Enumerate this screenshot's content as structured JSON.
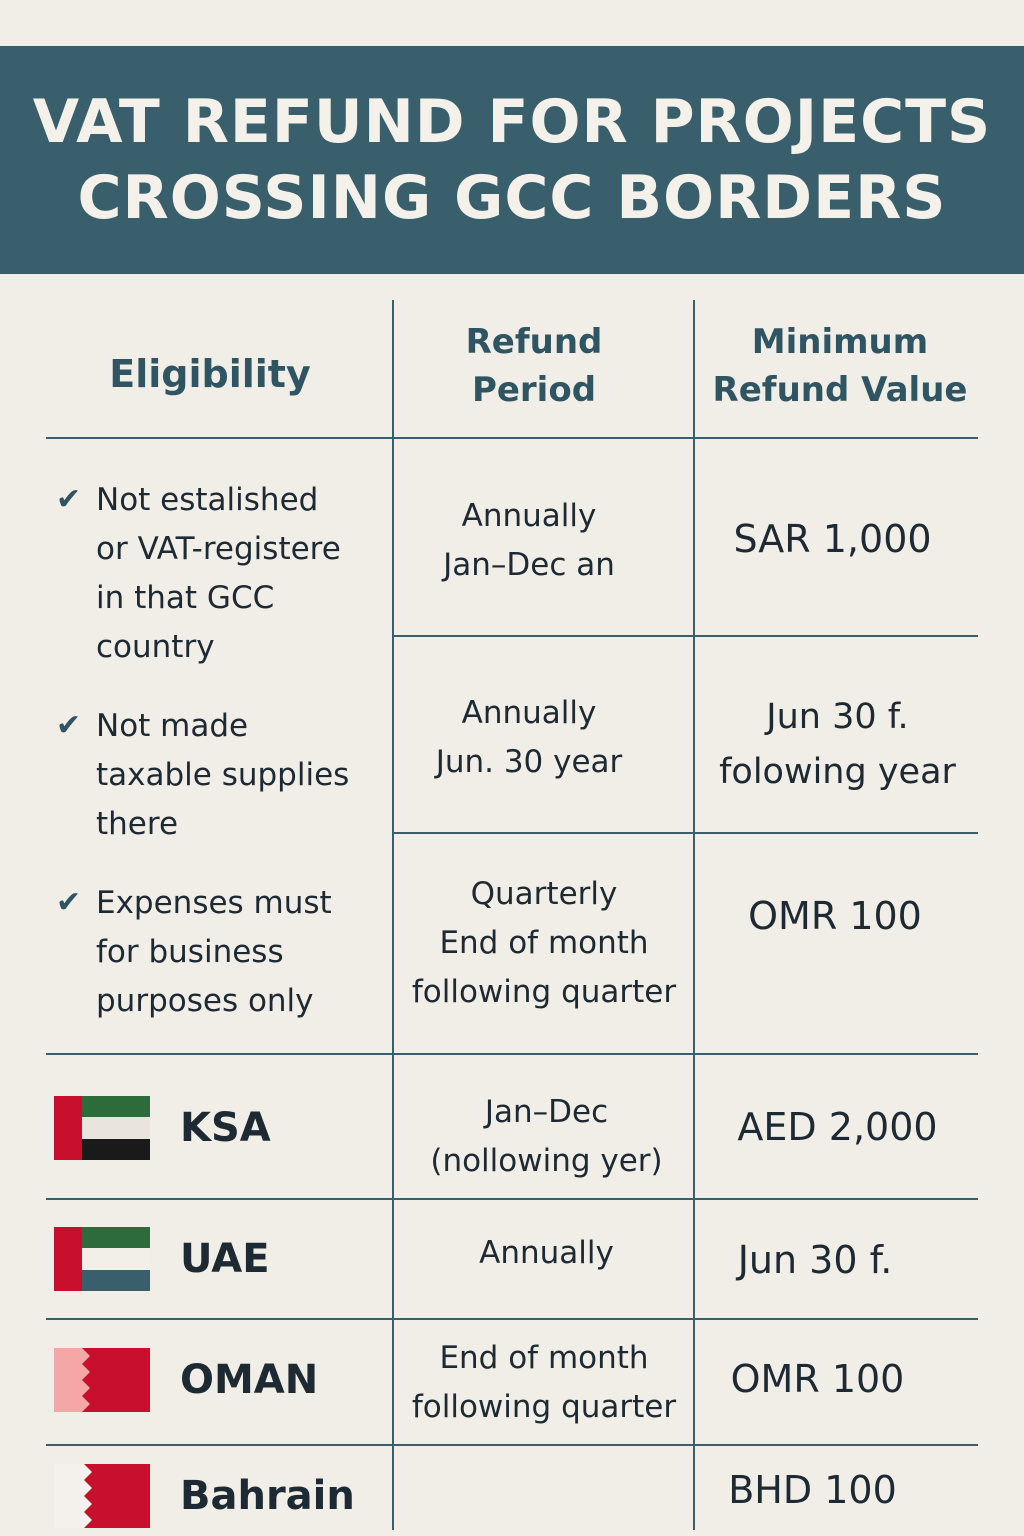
{
  "title": {
    "line1": "VAT REFUND FOR PROJECTS",
    "line2": "CROSSING GCC BORDERS"
  },
  "headers": {
    "eligibility": "Eligibility",
    "refund_period": [
      "Refund",
      "Period"
    ],
    "min_value": [
      "Minimum",
      "Refund Value"
    ]
  },
  "eligibility": [
    {
      "lines": [
        "Not estalished",
        "or VAT-registere",
        "in that GCC",
        "country"
      ]
    },
    {
      "lines": [
        "Not made",
        "taxable supplies",
        "there"
      ]
    },
    {
      "lines": [
        "Expenses must",
        "for business",
        "purposes only"
      ]
    }
  ],
  "top_rows": [
    {
      "period": [
        "Annually",
        "Jan–Dec an"
      ],
      "value": [
        "SAR 1,000"
      ]
    },
    {
      "period": [
        "Annually",
        "Jun. 30 year"
      ],
      "value": [
        "Jun 30 f.",
        "folowing year"
      ]
    },
    {
      "period": [
        "Quarterly",
        "End of month",
        "following quarter"
      ],
      "value": [
        "OMR 100"
      ]
    }
  ],
  "countries": [
    {
      "name": "KSA",
      "period": [
        "Jan–Dec",
        "(nollowing yer)"
      ],
      "value": "AED 2,000",
      "flag": "uae-black"
    },
    {
      "name": "UAE",
      "period": [
        "Annually"
      ],
      "value": "Jun 30 f.",
      "flag": "uae-teal"
    },
    {
      "name": "OMAN",
      "period": [
        "End of month",
        "following quarter"
      ],
      "value": "OMR 100",
      "flag": "bahrain-pink"
    },
    {
      "name": "Bahrain",
      "period": [],
      "value": "BHD 100",
      "flag": "bahrain-white"
    }
  ],
  "colors": {
    "banner": "#3a5f6c",
    "background": "#f1ede7",
    "accent": "#2f5563"
  },
  "icons": {
    "check": "checkmark-icon"
  }
}
